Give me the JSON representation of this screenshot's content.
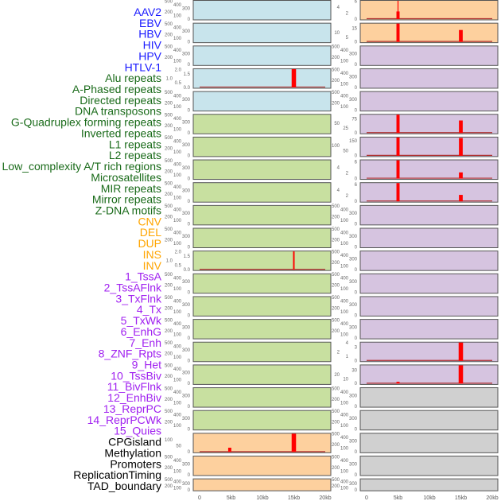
{
  "chart_data": {
    "type": "bar",
    "x_range_kb": [
      0,
      20
    ],
    "x_ticks": [
      "0",
      "5kb",
      "10kb",
      "15kb",
      "20kb"
    ],
    "track_labels": [
      "AAV2",
      "EBV",
      "HBV",
      "HIV",
      "HPV",
      "HTLV-1",
      "Alu repeats",
      "A-Phased repeats",
      "Directed repeats",
      "DNA transposons",
      "G-Quadruplex forming repeats",
      "Inverted repeats",
      "L1 repeats",
      "L2 repeats",
      "Low_complexity A/T rich regions",
      "Microsatellites",
      "MIR repeats",
      "Mirror repeats",
      "Z-DNA motifs",
      "CNV",
      "DEL",
      "DUP",
      "INS",
      "INV",
      "1_TssA",
      "2_TssAFlnk",
      "3_TxFlnk",
      "4_Tx",
      "5_TxWk",
      "6_EnhG",
      "7_Enh",
      "8_ZNF_Rpts",
      "9_Het",
      "10_TssBiv",
      "11_BivFlnk",
      "12_EnhBiv",
      "13_ReprPC",
      "14_ReprPCWk",
      "15_Quies",
      "CPGisland",
      "Methylation",
      "Promoters",
      "ReplicationTiming",
      "TAD_boundary"
    ],
    "label_groups": [
      {
        "from": 0,
        "to": 5,
        "color": "#1a1aff"
      },
      {
        "from": 6,
        "to": 18,
        "color": "#1a6b1a"
      },
      {
        "from": 19,
        "to": 23,
        "color": "#ffa500"
      },
      {
        "from": 24,
        "to": 38,
        "color": "#a020f0"
      },
      {
        "from": 39,
        "to": 43,
        "color": "#000000"
      }
    ],
    "bar_color": "#ff0000",
    "columns": [
      {
        "name": "left",
        "panels": [
          {
            "color": "#c8e4ec"
          },
          {
            "color": "#c8e4ec"
          },
          {
            "color": "#c8e4ec"
          },
          {
            "color": "#c8e4ec",
            "yticks": [
              "0.0",
              "0.5",
              "1.0",
              "1.5",
              "2.0"
            ],
            "ymax": 2,
            "bars": [
              {
                "x": 15,
                "w": 0.7,
                "y": 2
              }
            ]
          },
          {
            "color": "#c8e4ec"
          },
          {
            "color": "#c8e0a0"
          },
          {
            "color": "#c8e0a0"
          },
          {
            "color": "#c8e0a0"
          },
          {
            "color": "#c8e0a0"
          },
          {
            "color": "#c8e0a0"
          },
          {
            "color": "#c8e0a0"
          },
          {
            "color": "#c8e0a0",
            "yticks": [
              "0.0",
              "0.5",
              "1.0",
              "1.5",
              "2.0"
            ],
            "ymax": 2,
            "bars": [
              {
                "x": 15,
                "w": 0.25,
                "y": 2
              }
            ]
          },
          {
            "color": "#c8e0a0"
          },
          {
            "color": "#c8e0a0"
          },
          {
            "color": "#c8e0a0"
          },
          {
            "color": "#c8e0a0"
          },
          {
            "color": "#c8e0a0"
          },
          {
            "color": "#c8e0a0"
          },
          {
            "color": "#c8e0a0"
          },
          {
            "color": "#fdd09e",
            "yticks": [
              "0",
              "50",
              "100"
            ],
            "ymax": 150,
            "bars": [
              {
                "x": 4.8,
                "w": 0.5,
                "y": 35
              },
              {
                "x": 15,
                "w": 0.7,
                "y": 150
              }
            ]
          },
          {
            "color": "#fdd09e"
          },
          {
            "color": "#fdd09e",
            "short": true
          }
        ]
      },
      {
        "name": "right",
        "panels": [
          {
            "color": "#fdd09e",
            "yticks": [
              "0",
              "2",
              "4",
              "6"
            ],
            "ymax": 6,
            "bars": [
              {
                "x": 5,
                "w": 0.15,
                "y": 6
              },
              {
                "x": 5,
                "w": 0.5,
                "y": 2.5
              }
            ]
          },
          {
            "color": "#fdd09e",
            "yticks": [
              "0",
              "5",
              "10",
              "15"
            ],
            "ymax": 20,
            "bars": [
              {
                "x": 5,
                "w": 0.5,
                "y": 20
              },
              {
                "x": 15,
                "w": 0.6,
                "y": 13
              }
            ]
          },
          {
            "color": "#d6c4e0"
          },
          {
            "color": "#d6c4e0"
          },
          {
            "color": "#d6c4e0"
          },
          {
            "color": "#d6c4e0",
            "yticks": [
              "0",
              "25",
              "50",
              "75"
            ],
            "ymax": 95,
            "bars": [
              {
                "x": 5,
                "w": 0.5,
                "y": 95
              },
              {
                "x": 15,
                "w": 0.6,
                "y": 65
              }
            ]
          },
          {
            "color": "#d6c4e0",
            "yticks": [
              "0",
              "50",
              "100",
              "150"
            ],
            "ymax": 180,
            "bars": [
              {
                "x": 5,
                "w": 0.5,
                "y": 180
              },
              {
                "x": 15,
                "w": 0.6,
                "y": 175
              }
            ]
          },
          {
            "color": "#d6c4e0",
            "yticks": [
              "0",
              "2",
              "4",
              "6"
            ],
            "ymax": 6.5,
            "bars": [
              {
                "x": 5,
                "w": 0.5,
                "y": 6.5
              },
              {
                "x": 15,
                "w": 0.6,
                "y": 2.2
              }
            ]
          },
          {
            "color": "#d6c4e0",
            "yticks": [
              "0",
              "2",
              "4",
              "6"
            ],
            "ymax": 6.5,
            "bars": [
              {
                "x": 5,
                "w": 0.5,
                "y": 6.5
              },
              {
                "x": 15,
                "w": 0.6,
                "y": 2.3
              }
            ]
          },
          {
            "color": "#d6c4e0"
          },
          {
            "color": "#d6c4e0"
          },
          {
            "color": "#d6c4e0"
          },
          {
            "color": "#d6c4e0"
          },
          {
            "color": "#d6c4e0"
          },
          {
            "color": "#d6c4e0"
          },
          {
            "color": "#d6c4e0",
            "yticks": [
              "0",
              "1",
              "2",
              "3",
              "4"
            ],
            "ymax": 4,
            "bars": [
              {
                "x": 15,
                "w": 0.7,
                "y": 4
              }
            ]
          },
          {
            "color": "#d6c4e0",
            "yticks": [
              "0",
              "10",
              "20",
              "30"
            ],
            "ymax": 40,
            "bars": [
              {
                "x": 5,
                "w": 0.5,
                "y": 4
              },
              {
                "x": 15,
                "w": 0.7,
                "y": 40
              }
            ]
          },
          {
            "color": "#d0d0d0"
          },
          {
            "color": "#d0d0d0"
          },
          {
            "color": "#d0d0d0"
          },
          {
            "color": "#d0d0d0"
          },
          {
            "color": "#d0d0d0",
            "short": true
          }
        ]
      }
    ],
    "default_yticks": [
      "0",
      "100",
      "200",
      "300",
      "400",
      "500"
    ]
  }
}
